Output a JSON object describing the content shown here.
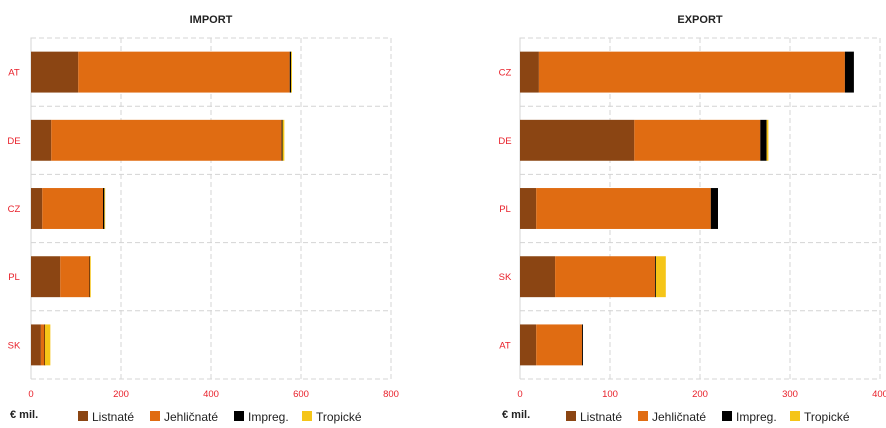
{
  "chart_data": [
    {
      "type": "bar",
      "orientation": "horizontal",
      "stacked": true,
      "title": "IMPORT",
      "categories": [
        "AT",
        "DE",
        "CZ",
        "PL",
        "SK"
      ],
      "series": [
        {
          "name": "Listnaté",
          "color": "#8B4513",
          "values": [
            105,
            45,
            25,
            65,
            22
          ]
        },
        {
          "name": "Jehličnaté",
          "color": "#E06C12",
          "values": [
            470,
            512,
            135,
            65,
            8
          ]
        },
        {
          "name": "Impreg.",
          "color": "#000000",
          "values": [
            3,
            2,
            3,
            1,
            1
          ]
        },
        {
          "name": "Tropické",
          "color": "#F5C518",
          "values": [
            2,
            4,
            1,
            1,
            12
          ]
        }
      ],
      "xlim": [
        0,
        800
      ],
      "xticks": [
        "0",
        "200",
        "400",
        "600",
        "800"
      ],
      "unit_label": "€ mil.",
      "grid": true
    },
    {
      "type": "bar",
      "orientation": "horizontal",
      "stacked": true,
      "title": "EXPORT",
      "categories": [
        "CZ",
        "DE",
        "PL",
        "SK",
        "AT"
      ],
      "series": [
        {
          "name": "Listnaté",
          "color": "#8B4513",
          "values": [
            21,
            127,
            18,
            39,
            18
          ]
        },
        {
          "name": "Jehličnaté",
          "color": "#E06C12",
          "values": [
            340,
            140,
            194,
            111,
            51
          ]
        },
        {
          "name": "Impreg.",
          "color": "#000000",
          "values": [
            10,
            7,
            8,
            1,
            1
          ]
        },
        {
          "name": "Tropické",
          "color": "#F5C518",
          "values": [
            0,
            2,
            0,
            11,
            0
          ]
        }
      ],
      "xlim": [
        0,
        400
      ],
      "xticks": [
        "0",
        "100",
        "200",
        "300",
        "400"
      ],
      "unit_label": "€ mil.",
      "grid": true
    }
  ],
  "legend": [
    "Listnaté",
    "Jehličnaté",
    "Impreg.",
    "Tropické"
  ]
}
